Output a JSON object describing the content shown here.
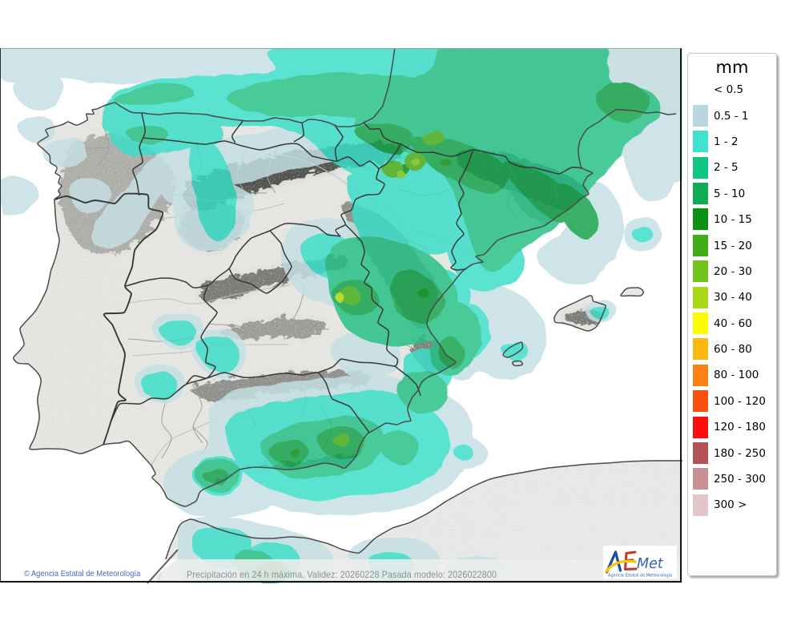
{
  "map": {
    "type": "weather-precipitation-map",
    "region": "Iberian Peninsula",
    "sea_color": "#ffffff",
    "land_color": "#e7e7e4",
    "africa_color": "#eaeaea",
    "coast_color": "#4a4a48",
    "region_border_color": "#383838",
    "province_border_color": "#adadab",
    "frame_color": "#1c1c1c"
  },
  "legend": {
    "title": "mm",
    "entries": [
      {
        "label": "< 0.5",
        "color": null
      },
      {
        "label": "0.5 - 1",
        "color": "#b7d8de"
      },
      {
        "label": "1 - 2",
        "color": "#3fe2cf"
      },
      {
        "label": "2 - 5",
        "color": "#0fc783"
      },
      {
        "label": "5 - 10",
        "color": "#0fad52"
      },
      {
        "label": "10 - 15",
        "color": "#0a9213"
      },
      {
        "label": "15 - 20",
        "color": "#3fae19"
      },
      {
        "label": "20 - 30",
        "color": "#72c41c"
      },
      {
        "label": "30 - 40",
        "color": "#abd816"
      },
      {
        "label": "40 - 60",
        "color": "#fdfb02"
      },
      {
        "label": "60 - 80",
        "color": "#fdb913"
      },
      {
        "label": "80 - 100",
        "color": "#fc8014"
      },
      {
        "label": "100 - 120",
        "color": "#f9500f"
      },
      {
        "label": "120 - 180",
        "color": "#fd0d0d"
      },
      {
        "label": "180 - 250",
        "color": "#b4525a"
      },
      {
        "label": "250 - 300",
        "color": "#c98f95"
      },
      {
        "label": "300 >",
        "color": "#e4c5ca"
      }
    ]
  },
  "footer": {
    "copyright": "© Agencia Estatal de Meteorología",
    "info": "Precipitación en 24 h máxima. Validez: 20260228 Pasada modelo: 2026022800"
  },
  "logo": {
    "name": "AEMET",
    "letter_a": "A",
    "letter_e": "E",
    "letters_met": "Met",
    "subtitle": "Agencia Estatal de Meteorología",
    "blue": "#1c4f9c",
    "red": "#c23b26",
    "yellow": "#fdc400"
  },
  "precip_palette": {
    "p05_1": "#c5e0e4",
    "p1_2": "#3adec9",
    "p2_5": "#27c086",
    "p5_10": "#12a24c",
    "p10_15": "#0c9213",
    "p15_20": "#46ae1d",
    "p20_30": "#78c41e",
    "p30_40": "#abd816"
  }
}
